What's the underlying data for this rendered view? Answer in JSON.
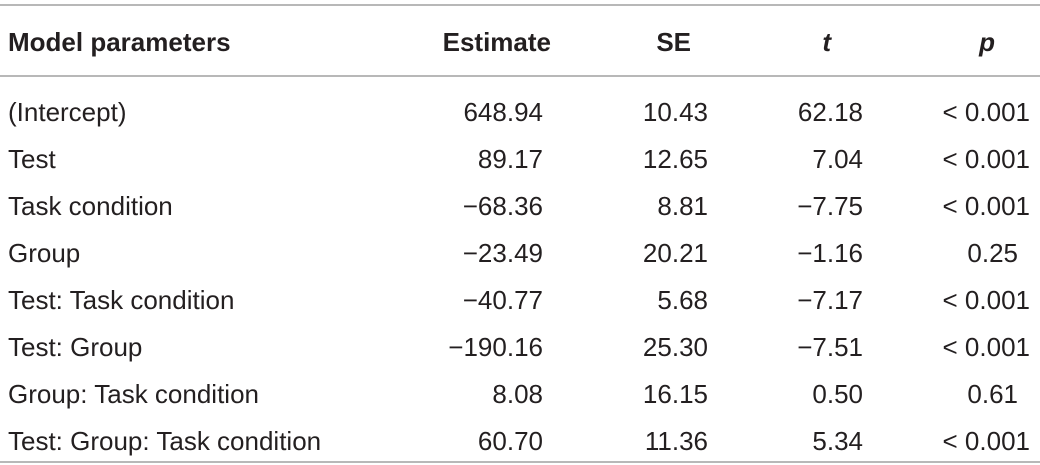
{
  "table": {
    "headers": {
      "name": "Model parameters",
      "estimate": "Estimate",
      "se": "SE",
      "t": "t",
      "p": "p"
    },
    "rows": [
      {
        "name": "(Intercept)",
        "estimate": "648.94",
        "se": "10.43",
        "t": "62.18",
        "p": "< 0.001"
      },
      {
        "name": "Test",
        "estimate": "89.17",
        "se": "12.65",
        "t": "7.04",
        "p": "< 0.001"
      },
      {
        "name": "Task condition",
        "estimate": "−68.36",
        "se": "8.81",
        "t": "−7.75",
        "p": "< 0.001"
      },
      {
        "name": "Group",
        "estimate": "−23.49",
        "se": "20.21",
        "t": "−1.16",
        "p": "0.25"
      },
      {
        "name": "Test: Task condition",
        "estimate": "−40.77",
        "se": "5.68",
        "t": "−7.17",
        "p": "< 0.001"
      },
      {
        "name": "Test: Group",
        "estimate": "−190.16",
        "se": "25.30",
        "t": "−7.51",
        "p": "< 0.001"
      },
      {
        "name": "Group: Task condition",
        "estimate": "8.08",
        "se": "16.15",
        "t": "0.50",
        "p": "0.61"
      },
      {
        "name": "Test: Group: Task condition",
        "estimate": "60.70",
        "se": "11.36",
        "t": "5.34",
        "p": "< 0.001"
      }
    ]
  }
}
